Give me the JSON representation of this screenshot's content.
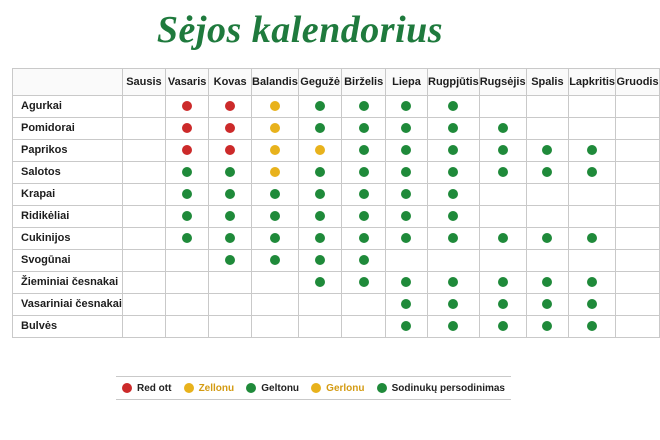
{
  "title": "Sėjos kalendorius",
  "months": [
    "Sausis",
    "Vasaris",
    "Kovas",
    "Balandis",
    "Gegužė",
    "Birželis",
    "Liepa",
    "Rugpjūtis",
    "Rugsėjis",
    "Spalis",
    "Lapkritis",
    "Gruodis"
  ],
  "colors": {
    "red": "#cc2a2a",
    "yellow": "#e8b21c",
    "green": "#1f8a3a"
  },
  "rows": [
    {
      "name": "Agurkai",
      "cells": [
        "",
        "red",
        "red",
        "yellow",
        "green",
        "green",
        "green",
        "green",
        "",
        "",
        "",
        ""
      ]
    },
    {
      "name": "Pomidorai",
      "cells": [
        "",
        "red",
        "red",
        "yellow",
        "green",
        "green",
        "green",
        "green",
        "green",
        "",
        "",
        ""
      ]
    },
    {
      "name": "Paprikos",
      "cells": [
        "",
        "red",
        "red",
        "yellow",
        "yellow",
        "green",
        "green",
        "green",
        "green",
        "green",
        "green",
        ""
      ]
    },
    {
      "name": "Salotos",
      "cells": [
        "",
        "green",
        "green",
        "yellow",
        "green",
        "green",
        "green",
        "green",
        "green",
        "green",
        "green",
        ""
      ]
    },
    {
      "name": "Krapai",
      "cells": [
        "",
        "green",
        "green",
        "green",
        "green",
        "green",
        "green",
        "green",
        "",
        "",
        "",
        ""
      ]
    },
    {
      "name": "Ridikėliai",
      "cells": [
        "",
        "green",
        "green",
        "green",
        "green",
        "green",
        "green",
        "green",
        "",
        "",
        "",
        ""
      ]
    },
    {
      "name": "Cukinijos",
      "cells": [
        "",
        "green",
        "green",
        "green",
        "green",
        "green",
        "green",
        "green",
        "green",
        "green",
        "green",
        ""
      ]
    },
    {
      "name": "Svogūnai",
      "cells": [
        "",
        "",
        "green",
        "green",
        "green",
        "green",
        "",
        "",
        "",
        "",
        "",
        ""
      ]
    },
    {
      "name": "Žieminiai česnakai",
      "cells": [
        "",
        "",
        "",
        "",
        "green",
        "green",
        "green",
        "green",
        "green",
        "green",
        "green",
        ""
      ]
    },
    {
      "name": "Vasariniai česnakai",
      "cells": [
        "",
        "",
        "",
        "",
        "",
        "",
        "green",
        "green",
        "green",
        "green",
        "green",
        ""
      ]
    },
    {
      "name": "Bulvės",
      "cells": [
        "",
        "",
        "",
        "",
        "",
        "",
        "green",
        "green",
        "green",
        "green",
        "green",
        ""
      ]
    }
  ],
  "legend": [
    {
      "color": "red",
      "label": "Red ott"
    },
    {
      "color": "yellow",
      "label": "Zellonu"
    },
    {
      "color": "green",
      "label": "Geltonu"
    },
    {
      "color": "yellow",
      "label": "Gerlonu"
    },
    {
      "color": "green",
      "label": "Sodinukų persodinimas"
    }
  ]
}
